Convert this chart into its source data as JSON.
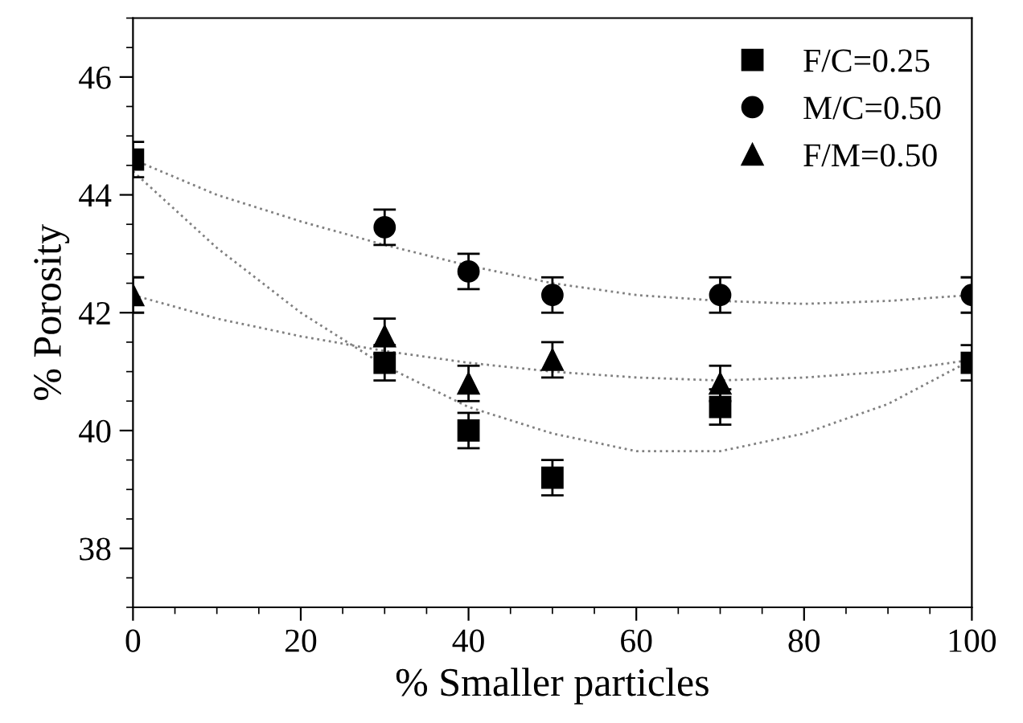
{
  "chart_data": {
    "type": "scatter",
    "xlabel": "% Smaller particles",
    "ylabel": "% Porosity",
    "xlim": [
      0,
      100
    ],
    "xticks": [
      0,
      20,
      40,
      60,
      80,
      100
    ],
    "ylim": [
      37,
      47
    ],
    "yticks": [
      38,
      40,
      42,
      44,
      46
    ],
    "legend": "top right",
    "grid": false,
    "series": [
      {
        "name": "F/C=0.25",
        "color": "#000000",
        "marker": "square",
        "x": [
          0,
          30,
          40,
          50,
          70,
          100
        ],
        "values": [
          44.6,
          41.15,
          40.0,
          39.2,
          40.4,
          41.15
        ],
        "errors": [
          0.3,
          0.3,
          0.3,
          0.3,
          0.3,
          0.3
        ]
      },
      {
        "name": "M/C=0.50",
        "color": "#000000",
        "marker": "circle",
        "x": [
          30,
          40,
          50,
          70,
          100
        ],
        "values": [
          43.45,
          42.7,
          42.3,
          42.3,
          42.3
        ],
        "errors": [
          0.3,
          0.3,
          0.3,
          0.3,
          0.3
        ]
      },
      {
        "name": "F/M=0.50",
        "color": "#000000",
        "marker": "triangle",
        "x": [
          0,
          30,
          40,
          50,
          70
        ],
        "values": [
          42.3,
          41.6,
          40.8,
          41.2,
          40.8
        ],
        "errors": [
          0.3,
          0.3,
          0.3,
          0.3,
          0.3
        ]
      },
      {
        "type": "line",
        "color": "#808080",
        "line_style": "dotted",
        "marker": "none",
        "x": [
          0,
          10,
          20,
          30,
          40,
          50,
          60,
          70,
          80,
          90,
          100
        ],
        "values": [
          44.4,
          43.1,
          42.0,
          41.1,
          40.4,
          39.95,
          39.65,
          39.65,
          39.95,
          40.45,
          41.2
        ]
      },
      {
        "type": "line",
        "color": "#808080",
        "line_style": "dotted",
        "marker": "none",
        "x": [
          0,
          10,
          20,
          30,
          40,
          50,
          60,
          70,
          80,
          90,
          100
        ],
        "values": [
          44.6,
          44.0,
          43.55,
          43.15,
          42.8,
          42.5,
          42.3,
          42.2,
          42.15,
          42.2,
          42.3
        ]
      },
      {
        "type": "line",
        "color": "#808080",
        "line_style": "dotted",
        "marker": "none",
        "x": [
          0,
          10,
          20,
          30,
          40,
          50,
          60,
          70,
          80,
          90,
          100
        ],
        "values": [
          42.3,
          41.9,
          41.6,
          41.35,
          41.15,
          41.0,
          40.9,
          40.85,
          40.9,
          41.0,
          41.2
        ]
      }
    ]
  }
}
